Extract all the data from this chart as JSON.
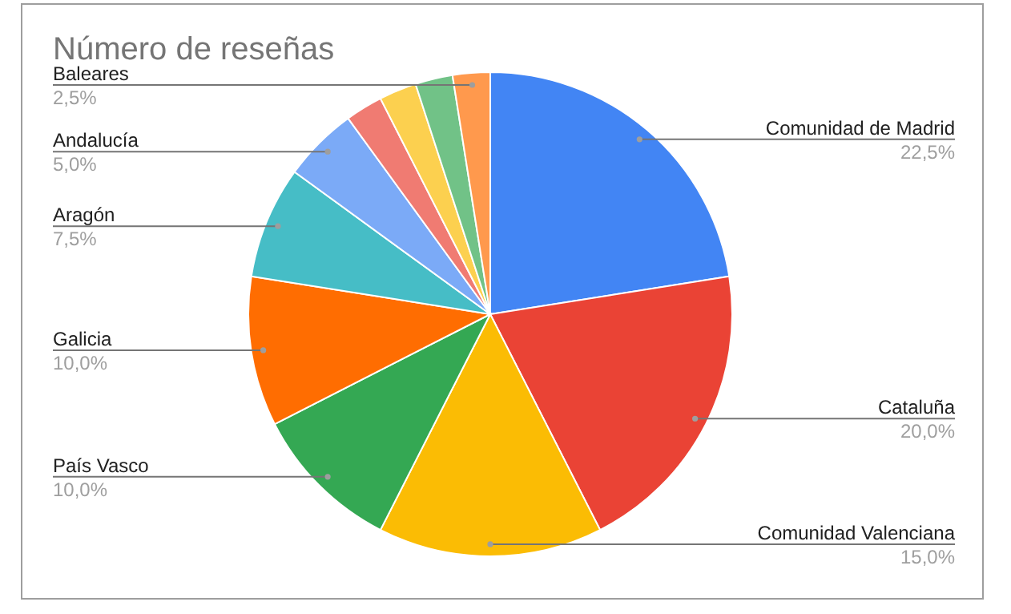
{
  "chart_data": {
    "type": "pie",
    "title": "Número de reseñas",
    "categories": [
      "Comunidad de Madrid",
      "Cataluña",
      "Comunidad Valenciana",
      "País Vasco",
      "Galicia",
      "Aragón",
      "Andalucía",
      null,
      null,
      null,
      "Baleares"
    ],
    "values": [
      22.5,
      20,
      15,
      10,
      10,
      7.5,
      5,
      2.5,
      2.5,
      2.5,
      2.5
    ],
    "value_labels": [
      "22,5%",
      "20,0%",
      "15,0%",
      "10,0%",
      "10,0%",
      "7,5%",
      "5,0%",
      null,
      null,
      null,
      "2,5%"
    ],
    "colors": [
      "#4285f4",
      "#ea4335",
      "#fbbc04",
      "#34a853",
      "#ff6d01",
      "#46bdc6",
      "#7baaf7",
      "#f07b72",
      "#fcd04f",
      "#71c287",
      "#ff994d"
    ],
    "legend": false
  }
}
